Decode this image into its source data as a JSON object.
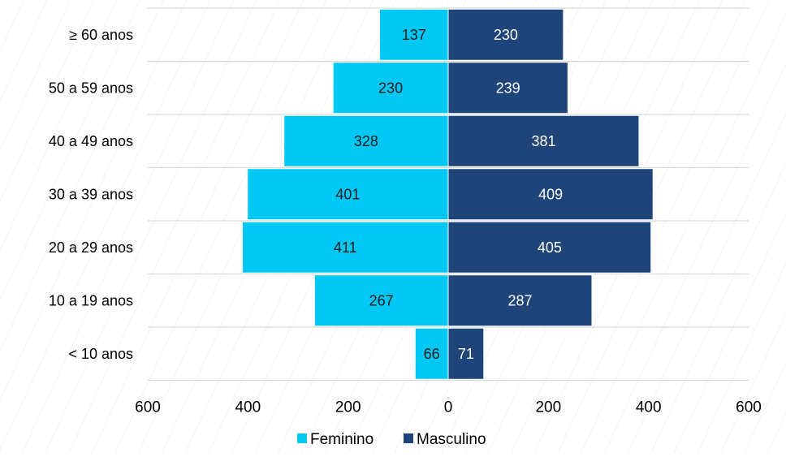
{
  "chart_data": {
    "type": "bar",
    "orientation": "horizontal",
    "layout": "population-pyramid",
    "categories": [
      "≥ 60 anos",
      "50 a 59 anos",
      "40 a 49 anos",
      "30 a 39 anos",
      "20 a 29 anos",
      "10 a 19 anos",
      "< 10 anos"
    ],
    "series": [
      {
        "name": "Feminino",
        "values": [
          137,
          230,
          328,
          401,
          411,
          267,
          66
        ],
        "color": "#00c8f5",
        "direction": "left"
      },
      {
        "name": "Masculino",
        "values": [
          230,
          239,
          381,
          409,
          405,
          287,
          71
        ],
        "color": "#1f4479",
        "direction": "right"
      }
    ],
    "xlim": [
      -600,
      600
    ],
    "x_ticks": [
      {
        "value": -600,
        "label": "600"
      },
      {
        "value": -400,
        "label": "400"
      },
      {
        "value": -200,
        "label": "200"
      },
      {
        "value": 0,
        "label": "0"
      },
      {
        "value": 200,
        "label": "200"
      },
      {
        "value": 400,
        "label": "400"
      },
      {
        "value": 600,
        "label": "600"
      }
    ],
    "title": "",
    "xlabel": "",
    "ylabel": "",
    "grid": "horizontal",
    "legend_position": "bottom",
    "data_labels": true,
    "gridline_color": "#d9d9d9"
  }
}
